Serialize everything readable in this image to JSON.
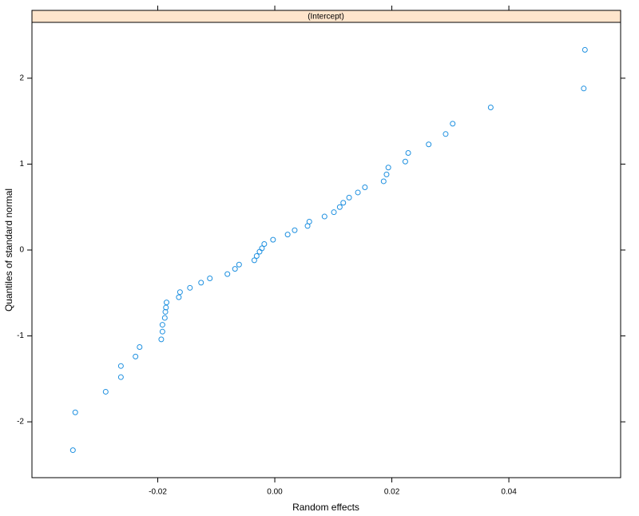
{
  "chart_data": {
    "type": "scatter",
    "strip": "(Intercept)",
    "xlabel": "Random effects",
    "ylabel": "Quantiles of standard normal",
    "color": "#1e90e0",
    "strip_color": "#ffe5cc",
    "x": [
      -0.0345,
      -0.0341,
      -0.0289,
      -0.0263,
      -0.0263,
      -0.0238,
      -0.0231,
      -0.0194,
      -0.0192,
      -0.0192,
      -0.0188,
      -0.0187,
      -0.0186,
      -0.0185,
      -0.0164,
      -0.0162,
      -0.0145,
      -0.0126,
      -0.0111,
      -0.0081,
      -0.0068,
      -0.0061,
      -0.0035,
      -0.0031,
      -0.0026,
      -0.0022,
      -0.0018,
      -0.0003,
      0.0022,
      0.0034,
      0.0056,
      0.0059,
      0.0085,
      0.0101,
      0.0111,
      0.0117,
      0.0127,
      0.0142,
      0.0154,
      0.0186,
      0.0191,
      0.0194,
      0.0223,
      0.0228,
      0.0263,
      0.0292,
      0.0304,
      0.0369,
      0.0528,
      0.053
    ],
    "values": [
      -2.33,
      -1.89,
      -1.65,
      -1.35,
      -1.48,
      -1.24,
      -1.13,
      -1.04,
      -0.95,
      -0.87,
      -0.79,
      -0.72,
      -0.67,
      -0.61,
      -0.55,
      -0.49,
      -0.44,
      -0.38,
      -0.33,
      -0.28,
      -0.22,
      -0.17,
      -0.12,
      -0.07,
      -0.02,
      0.02,
      0.07,
      0.12,
      0.18,
      0.23,
      0.28,
      0.33,
      0.39,
      0.44,
      0.5,
      0.55,
      0.61,
      0.67,
      0.73,
      0.8,
      0.88,
      0.96,
      1.03,
      1.13,
      1.23,
      1.35,
      1.47,
      1.66,
      1.88,
      2.33
    ],
    "xlim": [
      -0.0415,
      0.0591
    ],
    "ylim": [
      -2.65,
      2.65
    ],
    "xticks": [
      {
        "value": -0.02,
        "label": "-0.02"
      },
      {
        "value": 0,
        "label": "0.00"
      },
      {
        "value": 0.02,
        "label": "0.02"
      },
      {
        "value": 0.04,
        "label": "0.04"
      }
    ],
    "yticks": [
      -2,
      -1,
      0,
      1,
      2
    ]
  }
}
